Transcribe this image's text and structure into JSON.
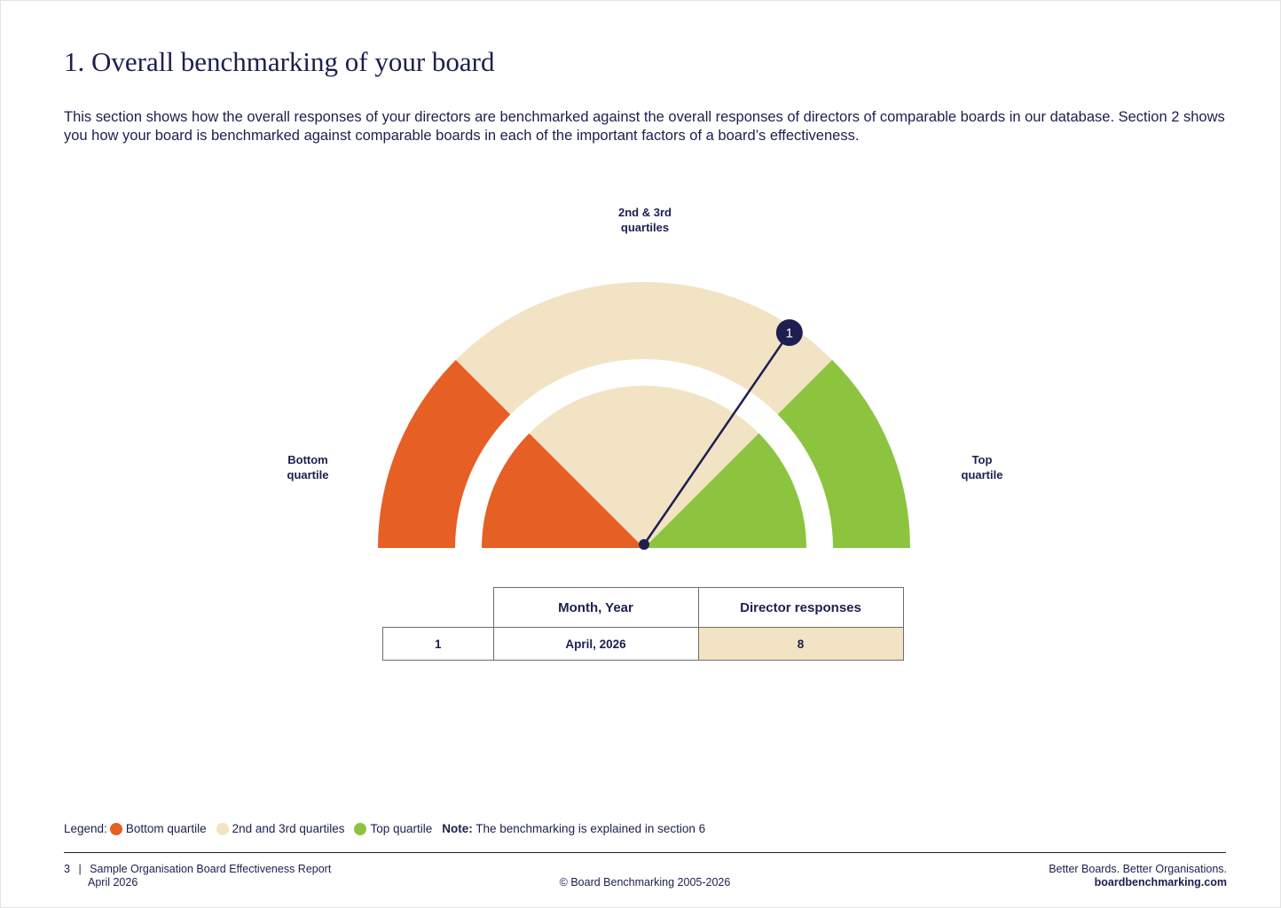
{
  "page": {
    "title": "1. Overall benchmarking of your board",
    "intro": "This section shows how the overall responses of your directors are benchmarked against the overall responses of directors of comparable boards in our database. Section 2 shows you how your board is benchmarked against comparable boards in each of the important factors of a board’s effectiveness."
  },
  "gauge": {
    "labels": {
      "middle_line1": "2nd & 3rd",
      "middle_line2": "quartiles",
      "bottom_line1": "Bottom",
      "bottom_line2": "quartile",
      "top_line1": "Top",
      "top_line2": "quartile"
    },
    "marker_label": "1",
    "pointer_angle_deg": 56,
    "colors": {
      "bottom": "#e65f25",
      "middle": "#f2e3c4",
      "top": "#8cc43f",
      "pointer": "#1c1f4f"
    }
  },
  "table": {
    "headers": [
      "",
      "Month, Year",
      "Director responses"
    ],
    "rows": [
      {
        "index": "1",
        "month_year": "April, 2026",
        "responses": "8"
      }
    ]
  },
  "legend": {
    "prefix": "Legend:",
    "items": [
      {
        "label": "Bottom quartile",
        "color": "#e65f25"
      },
      {
        "label": "2nd and 3rd quartiles",
        "color": "#f2e3c4"
      },
      {
        "label": "Top quartile",
        "color": "#8cc43f"
      }
    ],
    "note_label": "Note:",
    "note_text": "The benchmarking is explained in section 6"
  },
  "footer": {
    "page_number": "3",
    "separator": "|",
    "report_name": "Sample Organisation Board Effectiveness Report",
    "report_date": "April 2026",
    "copyright": "© Board Benchmarking 2005-2026",
    "tagline": "Better Boards. Better Organisations.",
    "website": "boardbenchmarking.com"
  }
}
